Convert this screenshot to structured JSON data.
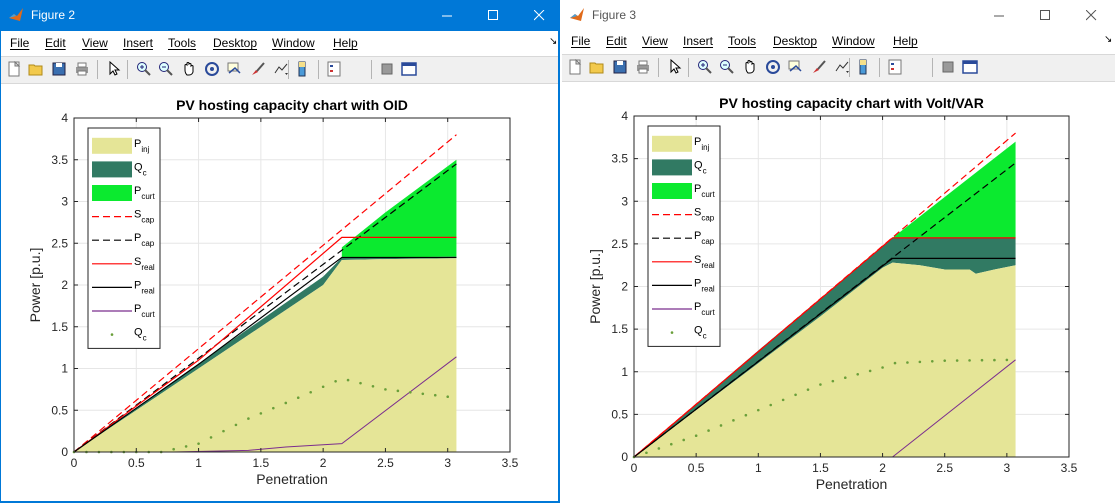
{
  "windows": [
    {
      "title": "Figure 2",
      "active": true,
      "menus": [
        "File",
        "Edit",
        "View",
        "Insert",
        "Tools",
        "Desktop",
        "Window",
        "Help"
      ],
      "tools": [
        "new-figure-icon",
        "open-icon",
        "save-icon",
        "print-icon",
        "pointer-icon",
        "zoom-in-icon",
        "zoom-out-icon",
        "pan-icon",
        "rotate-icon",
        "data-cursor-icon",
        "brush-icon",
        "link-icon",
        "colorbar-icon",
        "legend-icon",
        "hide-plot-tools-icon",
        "show-plot-tools-icon"
      ],
      "chart_data": {
        "type": "area",
        "title": "PV hosting capacity chart with OID",
        "xlabel": "Penetration",
        "ylabel": "Power [p.u.]",
        "xlim": [
          0,
          3.5
        ],
        "ylim": [
          0,
          4
        ],
        "xticks": [
          "0",
          "0.5",
          "1",
          "1.5",
          "2",
          "2.5",
          "3",
          "3.5"
        ],
        "yticks": [
          "0",
          "0.5",
          "1",
          "1.5",
          "2",
          "2.5",
          "3",
          "3.5",
          "4"
        ],
        "grid": true,
        "legend_position": "top-left",
        "legend": [
          {
            "label": "P",
            "sub": "inj",
            "kind": "patch",
            "color": "#e5e597"
          },
          {
            "label": "Q",
            "sub": "c",
            "kind": "patch",
            "color": "#317a63"
          },
          {
            "label": "P",
            "sub": "curt",
            "kind": "patch",
            "color": "#0bea2f"
          },
          {
            "label": "S",
            "sub": "cap",
            "kind": "dashed",
            "color": "#ff0000"
          },
          {
            "label": "P",
            "sub": "cap",
            "kind": "dashed",
            "color": "#000000"
          },
          {
            "label": "S",
            "sub": "real",
            "kind": "line",
            "color": "#ff0000"
          },
          {
            "label": "P",
            "sub": "real",
            "kind": "line",
            "color": "#000000"
          },
          {
            "label": "P",
            "sub": "curt",
            "kind": "line",
            "color": "#7b2d8e"
          },
          {
            "label": "Q",
            "sub": "c",
            "kind": "dots",
            "color": "#6a9f3a"
          }
        ],
        "series": {
          "P_inj": {
            "x": [
              0,
              0.5,
              1.0,
              1.5,
              2.0,
              2.15,
              2.5,
              3.07
            ],
            "y": [
              0,
              0.5,
              1.0,
              1.5,
              2.0,
              2.3,
              2.31,
              2.32
            ]
          },
          "Q_c_top": {
            "x": [
              0,
              0.5,
              1.0,
              1.5,
              2.0,
              2.15,
              2.5,
              3.07
            ],
            "y": [
              0,
              0.53,
              1.06,
              1.58,
              2.1,
              2.33,
              2.33,
              2.34
            ]
          },
          "P_curt_area_top": {
            "x": [
              2.15,
              2.5,
              3.07
            ],
            "y": [
              2.45,
              2.87,
              3.5
            ]
          },
          "S_cap": {
            "x": [
              0,
              3.07
            ],
            "y": [
              0,
              3.8
            ]
          },
          "P_cap": {
            "x": [
              0,
              3.07
            ],
            "y": [
              0,
              3.45
            ]
          },
          "S_real": {
            "x": [
              0,
              1.0,
              2.15,
              3.07
            ],
            "y": [
              0,
              1.1,
              2.57,
              2.57
            ]
          },
          "P_real": {
            "x": [
              0,
              1.0,
              2.15,
              3.07
            ],
            "y": [
              0,
              1.05,
              2.33,
              2.33
            ]
          },
          "P_curt": {
            "x": [
              0,
              0.8,
              1.4,
              1.7,
              2.15,
              3.07
            ],
            "y": [
              0,
              0,
              0.02,
              0.06,
              0.1,
              1.14
            ]
          },
          "Q_c": {
            "x": [
              0,
              0.7,
              1.0,
              1.4,
              1.8,
              2.15,
              2.5,
              3.07
            ],
            "y": [
              0,
              0,
              0.1,
              0.4,
              0.65,
              0.88,
              0.75,
              0.65
            ]
          }
        }
      }
    },
    {
      "title": "Figure 3",
      "active": false,
      "menus": [
        "File",
        "Edit",
        "View",
        "Insert",
        "Tools",
        "Desktop",
        "Window",
        "Help"
      ],
      "tools": [
        "new-figure-icon",
        "open-icon",
        "save-icon",
        "print-icon",
        "pointer-icon",
        "zoom-in-icon",
        "zoom-out-icon",
        "pan-icon",
        "rotate-icon",
        "data-cursor-icon",
        "brush-icon",
        "link-icon",
        "colorbar-icon",
        "legend-icon",
        "hide-plot-tools-icon",
        "show-plot-tools-icon"
      ],
      "chart_data": {
        "type": "area",
        "title": "PV hosting capacity chart with Volt/VAR",
        "xlabel": "Penetration",
        "ylabel": "Power [p.u.]",
        "xlim": [
          0,
          3.5
        ],
        "ylim": [
          0,
          4
        ],
        "xticks": [
          "0",
          "0.5",
          "1",
          "1.5",
          "2",
          "2.5",
          "3",
          "3.5"
        ],
        "yticks": [
          "0",
          "0.5",
          "1",
          "1.5",
          "2",
          "2.5",
          "3",
          "3.5",
          "4"
        ],
        "grid": true,
        "legend_position": "top-left",
        "legend": [
          {
            "label": "P",
            "sub": "inj",
            "kind": "patch",
            "color": "#e5e597"
          },
          {
            "label": "Q",
            "sub": "c",
            "kind": "patch",
            "color": "#317a63"
          },
          {
            "label": "P",
            "sub": "curt",
            "kind": "patch",
            "color": "#0bea2f"
          },
          {
            "label": "S",
            "sub": "cap",
            "kind": "dashed",
            "color": "#ff0000"
          },
          {
            "label": "P",
            "sub": "cap",
            "kind": "dashed",
            "color": "#000000"
          },
          {
            "label": "S",
            "sub": "real",
            "kind": "line",
            "color": "#ff0000"
          },
          {
            "label": "P",
            "sub": "real",
            "kind": "line",
            "color": "#000000"
          },
          {
            "label": "P",
            "sub": "curt",
            "kind": "line",
            "color": "#7b2d8e"
          },
          {
            "label": "Q",
            "sub": "c",
            "kind": "dots",
            "color": "#6a9f3a"
          }
        ],
        "series": {
          "P_inj": {
            "x": [
              0,
              0.5,
              1.0,
              1.5,
              2.0,
              2.08,
              2.3,
              2.5,
              2.7,
              2.75,
              2.9,
              3.07
            ],
            "y": [
              0,
              0.55,
              1.1,
              1.65,
              2.22,
              2.28,
              2.25,
              2.2,
              2.2,
              2.15,
              2.2,
              2.25
            ]
          },
          "Q_c_top": {
            "x": [
              0,
              1.0,
              2.08,
              3.07
            ],
            "y": [
              0,
              1.25,
              2.57,
              2.57
            ]
          },
          "P_curt_area_top": {
            "x": [
              2.08,
              2.5,
              3.07
            ],
            "y": [
              2.57,
              3.05,
              3.7
            ]
          },
          "S_cap": {
            "x": [
              0,
              3.07
            ],
            "y": [
              0,
              3.8
            ]
          },
          "P_cap": {
            "x": [
              0,
              3.07
            ],
            "y": [
              0,
              3.45
            ]
          },
          "S_real": {
            "x": [
              0,
              2.08,
              3.07
            ],
            "y": [
              0,
              2.57,
              2.57
            ]
          },
          "P_real": {
            "x": [
              0,
              2.08,
              3.07
            ],
            "y": [
              0,
              2.33,
              2.33
            ]
          },
          "P_curt": {
            "x": [
              2.08,
              3.07
            ],
            "y": [
              0,
              1.14
            ]
          },
          "Q_c": {
            "x": [
              0,
              0.5,
              1.0,
              1.5,
              2.0,
              2.08,
              2.5,
              3.07
            ],
            "y": [
              0,
              0.25,
              0.55,
              0.85,
              1.05,
              1.1,
              1.13,
              1.14
            ]
          }
        }
      }
    }
  ]
}
